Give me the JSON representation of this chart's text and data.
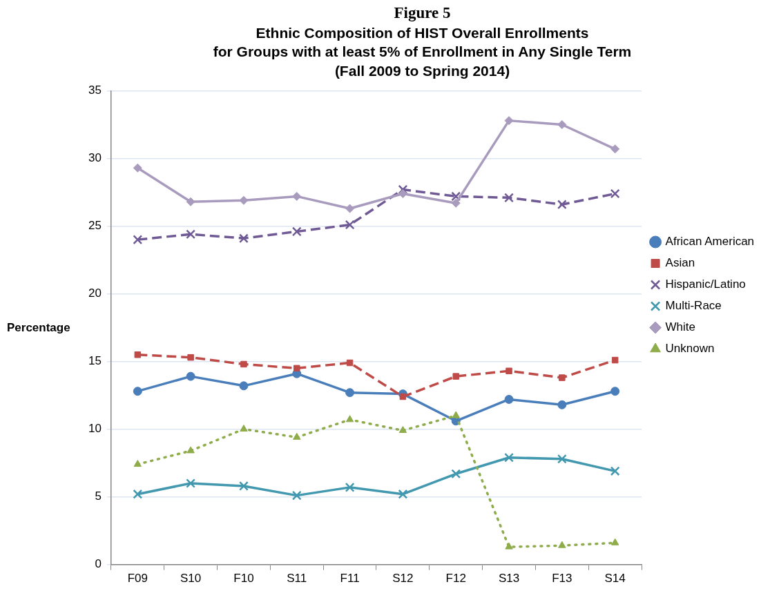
{
  "chart_data": {
    "type": "line",
    "title": "Figure 5",
    "subtitle": "Ethnic Composition of HIST Overall Enrollments\nfor Groups with at least 5% of Enrollment in Any Single Term\n(Fall 2009 to Spring 2014)",
    "ylabel": "Percentage",
    "categories": [
      "F09",
      "S10",
      "F10",
      "S11",
      "F11",
      "S12",
      "F12",
      "S13",
      "F13",
      "S14"
    ],
    "ylim": [
      0,
      35
    ],
    "yticks": [
      0,
      5,
      10,
      15,
      20,
      25,
      30,
      35
    ],
    "grid": "y",
    "legend": "right",
    "series": [
      {
        "name": "African American",
        "color": "#4a7ebb",
        "marker": "circle",
        "line_style": "solid",
        "values": [
          12.8,
          13.9,
          13.2,
          14.1,
          12.7,
          12.6,
          10.6,
          12.2,
          11.8,
          12.8
        ]
      },
      {
        "name": "Asian",
        "color": "#be4b48",
        "marker": "square",
        "line_style": "dashed",
        "values": [
          15.5,
          15.3,
          14.8,
          14.5,
          14.9,
          12.4,
          13.9,
          14.3,
          13.8,
          15.1
        ]
      },
      {
        "name": "Hispanic/Latino",
        "color": "#6f5a95",
        "marker": "cross",
        "line_style": "dashed",
        "values": [
          24.0,
          24.4,
          24.1,
          24.6,
          25.1,
          27.7,
          27.2,
          27.1,
          26.6,
          27.4
        ]
      },
      {
        "name": "Multi-Race",
        "color": "#4198af",
        "marker": "cross",
        "line_style": "solid",
        "values": [
          5.2,
          6.0,
          5.8,
          5.1,
          5.7,
          5.2,
          6.7,
          7.9,
          7.8,
          6.9
        ]
      },
      {
        "name": "White",
        "color": "#a99bbd",
        "marker": "diamond",
        "line_style": "solid",
        "values": [
          29.3,
          26.8,
          26.9,
          27.2,
          26.3,
          27.4,
          26.7,
          32.8,
          32.5,
          30.7
        ]
      },
      {
        "name": "Unknown",
        "color": "#8fac4b",
        "marker": "triangle",
        "line_style": "dotted",
        "values": [
          7.4,
          8.4,
          10.0,
          9.4,
          10.7,
          9.9,
          11.0,
          1.3,
          1.4,
          1.6
        ]
      }
    ]
  }
}
